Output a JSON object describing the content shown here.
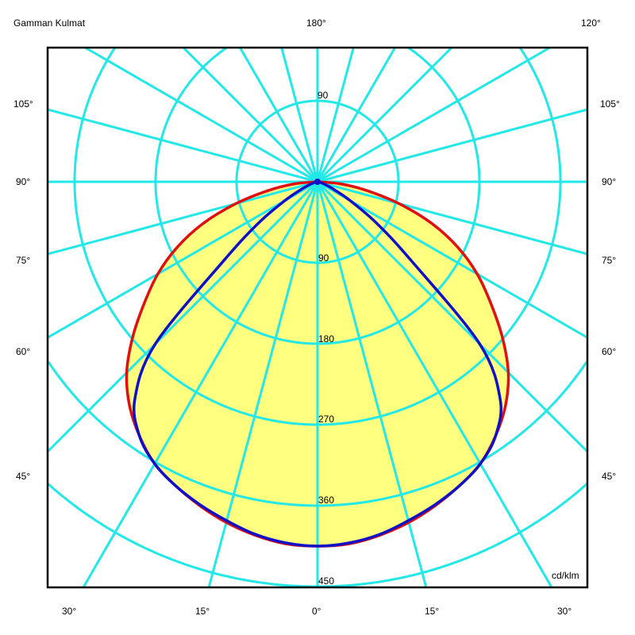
{
  "header": {
    "title_left": "Gamman Kulmat",
    "title_center": "180°",
    "title_right": "120°"
  },
  "colors": {
    "grid": "#22e8e8",
    "fill": "#ffff80",
    "series_1": "#e01010",
    "series_2": "#1010c8",
    "frame": "#000000"
  },
  "chart_data": {
    "type": "polar-line",
    "unit_label": "cd/klm",
    "radial_ticks": [
      "90",
      "180",
      "270",
      "360",
      "450"
    ],
    "radial_tick_values": [
      90,
      180,
      270,
      360,
      450
    ],
    "radial_top_label": "90",
    "angle_grid_step_deg": 15,
    "side_labels_left": [
      "105°",
      "90°",
      "75°",
      "60°",
      "45°"
    ],
    "side_labels_right": [
      "105°",
      "90°",
      "75°",
      "60°",
      "45°"
    ],
    "bottom_labels": [
      "30°",
      "15°",
      "0°",
      "15°",
      "30°"
    ],
    "symmetric": true,
    "angles_deg": [
      0,
      5,
      10,
      15,
      20,
      25,
      30,
      35,
      40,
      45,
      50,
      55,
      60,
      65,
      70,
      75,
      80,
      85,
      90
    ],
    "series": [
      {
        "color": "#e01010",
        "filled": true,
        "values": [
          405,
          404,
          399,
          392,
          383,
          373,
          362,
          345,
          325,
          300,
          268,
          235,
          205,
          172,
          135,
          94,
          55,
          25,
          0
        ]
      },
      {
        "color": "#1010c8",
        "filled": false,
        "values": [
          405,
          403,
          398,
          390,
          382,
          373,
          362,
          345,
          316,
          255,
          135,
          80,
          42,
          20,
          9,
          4,
          2,
          1,
          0
        ]
      }
    ]
  }
}
